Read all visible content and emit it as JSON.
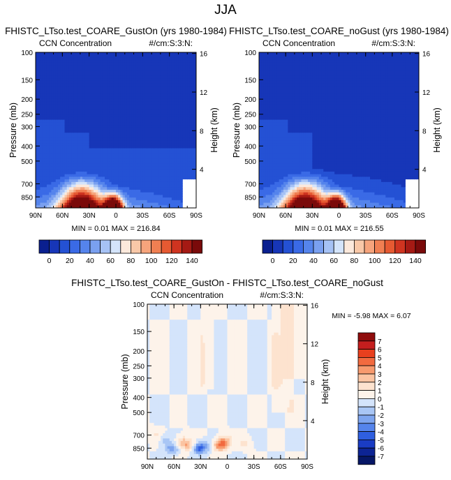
{
  "page_title": "JJA",
  "chart_data": [
    {
      "type": "contour",
      "title": "FHISTC_LTso.test_COARE_GustOn (yrs 1980-1984)",
      "left_label": "CCN Concentration",
      "right_label": "#/cm:S:3:N:",
      "ylabel": "Pressure (mb)",
      "ylabel_right": "Height (km)",
      "x_ticks": [
        "90N",
        "60N",
        "30N",
        "0",
        "30S",
        "60S",
        "90S"
      ],
      "y_ticks": [
        "100",
        "150",
        "200",
        "250",
        "300",
        "400",
        "500",
        "700",
        "850"
      ],
      "height_ticks": [
        "16",
        "12",
        "8",
        "4"
      ],
      "stats": "MIN =  0.01  MAX = 216.84",
      "levels": [
        0,
        10,
        20,
        30,
        40,
        50,
        60,
        70,
        80,
        90,
        100,
        110,
        120,
        130,
        140
      ],
      "colorbar_labels": [
        "0",
        "20",
        "40",
        "60",
        "80",
        "100",
        "120",
        "140"
      ],
      "colors": [
        "#0a1f8f",
        "#1736b8",
        "#2451d4",
        "#3a6ae6",
        "#5584ec",
        "#7aa0f0",
        "#a6c2f5",
        "#d4e4fb",
        "#fce9dc",
        "#f9c8a8",
        "#f6a47c",
        "#f07f52",
        "#e65a32",
        "#cf3420",
        "#a51a14",
        "#7a0a0a"
      ]
    },
    {
      "type": "contour",
      "title": "FHISTC_LTso.test_COARE_noGust (yrs 1980-1984)",
      "left_label": "CCN Concentration",
      "right_label": "#/cm:S:3:N:",
      "ylabel": "Pressure (mb)",
      "ylabel_right": "Height (km)",
      "x_ticks": [
        "90N",
        "60N",
        "30N",
        "0",
        "30S",
        "60S",
        "90S"
      ],
      "y_ticks": [
        "100",
        "150",
        "200",
        "250",
        "300",
        "400",
        "500",
        "700",
        "850"
      ],
      "height_ticks": [
        "16",
        "12",
        "8",
        "4"
      ],
      "stats": "MIN =  0.01  MAX = 216.55"
    },
    {
      "type": "contour",
      "title": "FHISTC_LTso.test_COARE_GustOn - FHISTC_LTso.test_COARE_noGust",
      "left_label": "CCN Concentration",
      "right_label": "#/cm:S:3:N:",
      "ylabel": "Pressure (mb)",
      "ylabel_right": "Height (km)",
      "x_ticks": [
        "90N",
        "60N",
        "30N",
        "0",
        "30S",
        "60S",
        "90S"
      ],
      "y_ticks": [
        "100",
        "150",
        "200",
        "250",
        "300",
        "400",
        "500",
        "700",
        "850"
      ],
      "height_ticks": [
        "16",
        "12",
        "8",
        "4"
      ],
      "stats": "MIN =  -5.98  MAX =   6.07",
      "colorbar_labels": [
        "7",
        "6",
        "5",
        "4",
        "3",
        "2",
        "1",
        "0",
        "-1",
        "-2",
        "-3",
        "-4",
        "-5",
        "-6",
        "-7"
      ],
      "colors": [
        "#8f0c0c",
        "#c41e1e",
        "#e8401e",
        "#f26a3f",
        "#f79a6e",
        "#fbc4a2",
        "#fde3cf",
        "#fdf3ea",
        "#d4e4fb",
        "#a9c6f5",
        "#7ea5ef",
        "#5584ec",
        "#2f5fe0",
        "#1a3cc4",
        "#0d2494",
        "#061766"
      ]
    }
  ]
}
